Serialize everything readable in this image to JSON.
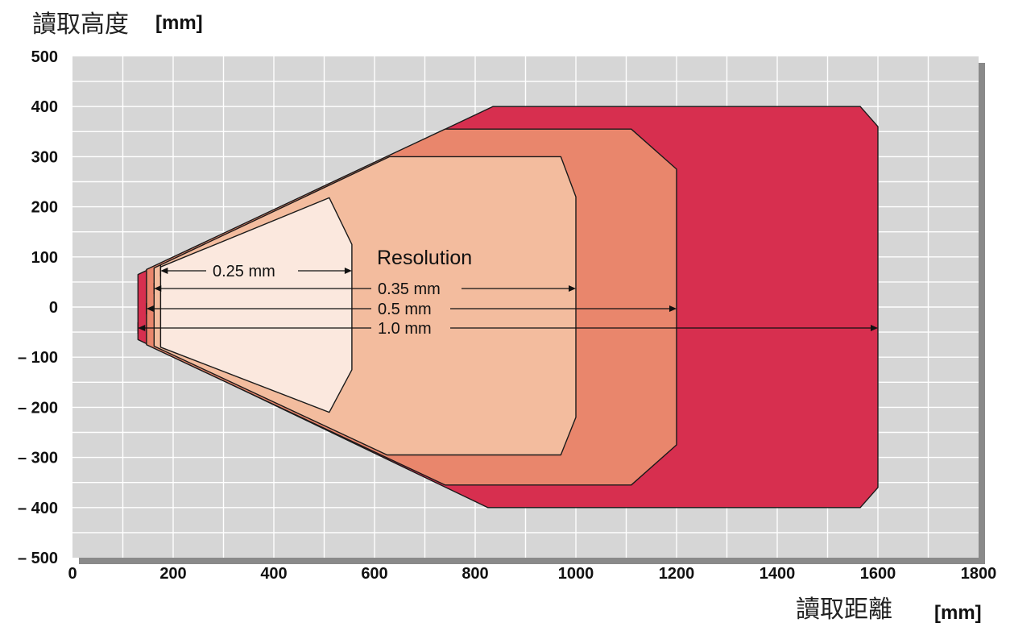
{
  "chart_data": {
    "type": "area",
    "ylabel": "讀取高度",
    "ylabel_unit": "[mm]",
    "xlabel": "讀取距離",
    "xlabel_unit": "[mm]",
    "xlim": [
      0,
      1800
    ],
    "ylim": [
      -500,
      500
    ],
    "x_ticks": [
      "0",
      "200",
      "400",
      "600",
      "800",
      "1000",
      "1200",
      "1400",
      "1600",
      "1800"
    ],
    "y_ticks": [
      "500",
      "400",
      "300",
      "200",
      "100",
      "0",
      "– 100",
      "– 200",
      "– 300",
      "– 400",
      "– 500"
    ],
    "x_tick_values": [
      0,
      200,
      400,
      600,
      800,
      1000,
      1200,
      1400,
      1600,
      1800
    ],
    "y_tick_values": [
      500,
      400,
      300,
      200,
      100,
      0,
      -100,
      -200,
      -300,
      -400,
      -500
    ],
    "grid": true,
    "annotation_title": "Resolution",
    "series": [
      {
        "name": "1.0 mm",
        "color": "#d72f4f",
        "arrow": [
          130,
          1600
        ],
        "outline": [
          [
            130,
            65
          ],
          [
            835,
            400
          ],
          [
            1565,
            400
          ],
          [
            1600,
            360
          ],
          [
            1600,
            -360
          ],
          [
            1565,
            -400
          ],
          [
            825,
            -400
          ],
          [
            130,
            -65
          ]
        ]
      },
      {
        "name": "0.5 mm",
        "color": "#e9866c",
        "arrow": [
          147,
          1200
        ],
        "outline": [
          [
            147,
            75
          ],
          [
            740,
            355
          ],
          [
            1110,
            355
          ],
          [
            1200,
            275
          ],
          [
            1200,
            -275
          ],
          [
            1110,
            -355
          ],
          [
            740,
            -355
          ],
          [
            147,
            -75
          ]
        ]
      },
      {
        "name": "0.35 mm",
        "color": "#f3bc9e",
        "arrow": [
          162,
          1000
        ],
        "outline": [
          [
            162,
            78
          ],
          [
            630,
            300
          ],
          [
            970,
            300
          ],
          [
            1000,
            220
          ],
          [
            1000,
            -220
          ],
          [
            970,
            -295
          ],
          [
            625,
            -295
          ],
          [
            162,
            -78
          ]
        ]
      },
      {
        "name": "0.25 mm",
        "color": "#fbe8de",
        "arrow": [
          175,
          555
        ],
        "outline": [
          [
            175,
            80
          ],
          [
            510,
            218
          ],
          [
            555,
            125
          ],
          [
            555,
            -125
          ],
          [
            510,
            -210
          ],
          [
            175,
            -80
          ]
        ]
      }
    ]
  }
}
